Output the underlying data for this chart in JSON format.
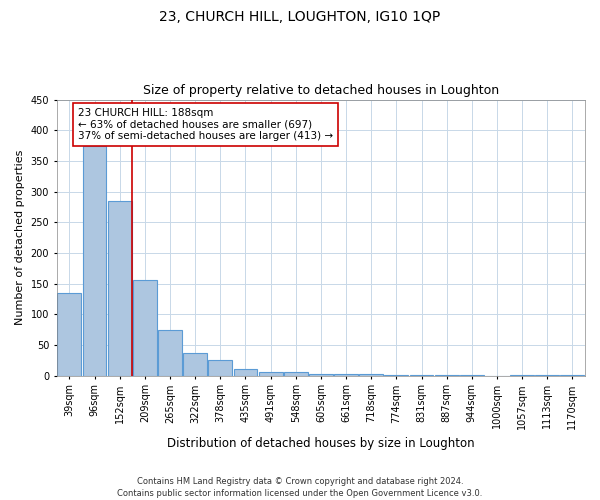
{
  "title1": "23, CHURCH HILL, LOUGHTON, IG10 1QP",
  "title2": "Size of property relative to detached houses in Loughton",
  "xlabel": "Distribution of detached houses by size in Loughton",
  "ylabel": "Number of detached properties",
  "bar_labels": [
    "39sqm",
    "96sqm",
    "152sqm",
    "209sqm",
    "265sqm",
    "322sqm",
    "378sqm",
    "435sqm",
    "491sqm",
    "548sqm",
    "605sqm",
    "661sqm",
    "718sqm",
    "774sqm",
    "831sqm",
    "887sqm",
    "944sqm",
    "1000sqm",
    "1057sqm",
    "1113sqm",
    "1170sqm"
  ],
  "bar_values": [
    135,
    375,
    285,
    155,
    75,
    37,
    25,
    10,
    5,
    5,
    3,
    2,
    2,
    1,
    1,
    1,
    1,
    0,
    1,
    1,
    1
  ],
  "bar_color": "#adc6e0",
  "bar_edge_color": "#5b9bd5",
  "grid_color": "#c8d8e8",
  "annotation_text": "23 CHURCH HILL: 188sqm\n← 63% of detached houses are smaller (697)\n37% of semi-detached houses are larger (413) →",
  "annotation_box_color": "#ffffff",
  "annotation_border_color": "#cc0000",
  "vline_color": "#cc0000",
  "vline_x": 2.5,
  "ylim": [
    0,
    450
  ],
  "yticks": [
    0,
    50,
    100,
    150,
    200,
    250,
    300,
    350,
    400,
    450
  ],
  "footnote": "Contains HM Land Registry data © Crown copyright and database right 2024.\nContains public sector information licensed under the Open Government Licence v3.0.",
  "title1_fontsize": 10,
  "title2_fontsize": 9,
  "xlabel_fontsize": 8.5,
  "ylabel_fontsize": 8,
  "tick_fontsize": 7,
  "annot_fontsize": 7.5,
  "footnote_fontsize": 6
}
